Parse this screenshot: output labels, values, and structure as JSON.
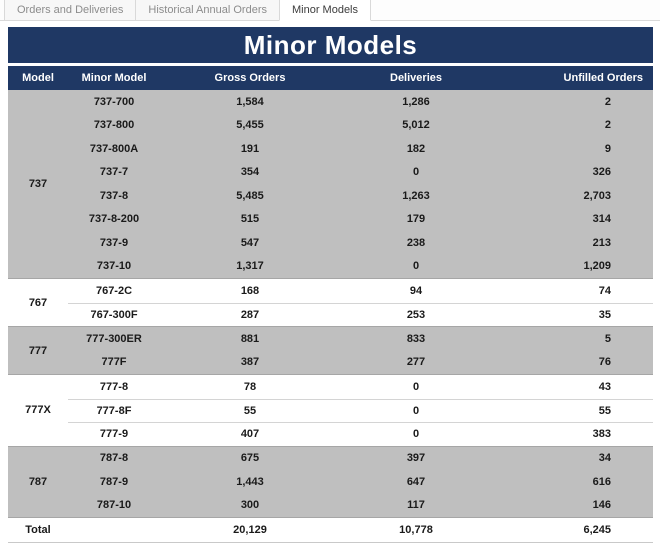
{
  "tabs": [
    {
      "label": "Orders and Deliveries",
      "active": false
    },
    {
      "label": "Historical Annual Orders",
      "active": false
    },
    {
      "label": "Minor Models",
      "active": true
    }
  ],
  "title": "Minor Models",
  "colors": {
    "navy": "#1f3864",
    "shaded_row": "#bfbfbf",
    "group_line": "#a6a6a6",
    "header_text": "#ffffff"
  },
  "chart_data": {
    "type": "table",
    "title": "Minor Models",
    "columns": [
      "Model",
      "Minor Model",
      "Gross Orders",
      "Deliveries",
      "Unfilled Orders"
    ],
    "groups": [
      {
        "model": "737",
        "shaded": true,
        "rows": [
          {
            "minor": "737-700",
            "gross": "1,584",
            "deliveries": "1,286",
            "unfilled": "2"
          },
          {
            "minor": "737-800",
            "gross": "5,455",
            "deliveries": "5,012",
            "unfilled": "2"
          },
          {
            "minor": "737-800A",
            "gross": "191",
            "deliveries": "182",
            "unfilled": "9"
          },
          {
            "minor": "737-7",
            "gross": "354",
            "deliveries": "0",
            "unfilled": "326"
          },
          {
            "minor": "737-8",
            "gross": "5,485",
            "deliveries": "1,263",
            "unfilled": "2,703"
          },
          {
            "minor": "737-8-200",
            "gross": "515",
            "deliveries": "179",
            "unfilled": "314"
          },
          {
            "minor": "737-9",
            "gross": "547",
            "deliveries": "238",
            "unfilled": "213"
          },
          {
            "minor": "737-10",
            "gross": "1,317",
            "deliveries": "0",
            "unfilled": "1,209"
          }
        ]
      },
      {
        "model": "767",
        "shaded": false,
        "rows": [
          {
            "minor": "767-2C",
            "gross": "168",
            "deliveries": "94",
            "unfilled": "74"
          },
          {
            "minor": "767-300F",
            "gross": "287",
            "deliveries": "253",
            "unfilled": "35"
          }
        ]
      },
      {
        "model": "777",
        "shaded": true,
        "rows": [
          {
            "minor": "777-300ER",
            "gross": "881",
            "deliveries": "833",
            "unfilled": "5"
          },
          {
            "minor": "777F",
            "gross": "387",
            "deliveries": "277",
            "unfilled": "76"
          }
        ]
      },
      {
        "model": "777X",
        "shaded": false,
        "rows": [
          {
            "minor": "777-8",
            "gross": "78",
            "deliveries": "0",
            "unfilled": "43"
          },
          {
            "minor": "777-8F",
            "gross": "55",
            "deliveries": "0",
            "unfilled": "55"
          },
          {
            "minor": "777-9",
            "gross": "407",
            "deliveries": "0",
            "unfilled": "383"
          }
        ]
      },
      {
        "model": "787",
        "shaded": true,
        "rows": [
          {
            "minor": "787-8",
            "gross": "675",
            "deliveries": "397",
            "unfilled": "34"
          },
          {
            "minor": "787-9",
            "gross": "1,443",
            "deliveries": "647",
            "unfilled": "616"
          },
          {
            "minor": "787-10",
            "gross": "300",
            "deliveries": "117",
            "unfilled": "146"
          }
        ]
      }
    ],
    "total": {
      "label": "Total",
      "gross": "20,129",
      "deliveries": "10,778",
      "unfilled": "6,245"
    }
  }
}
